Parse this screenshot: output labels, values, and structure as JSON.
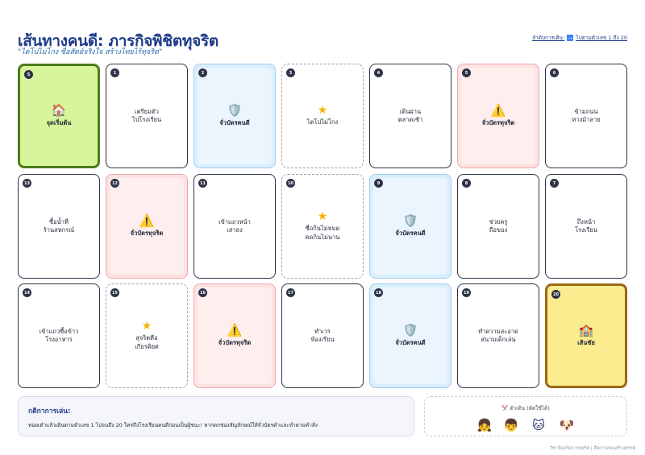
{
  "header": {
    "title": "เส้นทางคนดี: ภารกิจพิชิตทุจริต",
    "subtitle": "\"ไตโปไม่โกง ซื่อสัตย์จริงใจ สร้างไทยไร้ทุจริต\"",
    "order_label": "ลำดับการเดิน:",
    "order_arrow": "⇢",
    "order_text": "ไปตามตัวเลข 1 ถึง 20"
  },
  "cards": [
    {
      "num": "S",
      "type": "start",
      "icon": "🏠",
      "icon_name": "house-icon",
      "label": "จุดเริ่มต้น"
    },
    {
      "num": "1",
      "type": "plain",
      "icon": "",
      "icon_name": "",
      "label": "เตรียมตัว\nไปโรงเรียน"
    },
    {
      "num": "2",
      "type": "good",
      "icon": "🛡️",
      "icon_name": "shield-icon",
      "label": "จั่วบัตรคนดี"
    },
    {
      "num": "3",
      "type": "star",
      "icon": "★",
      "icon_name": "star-icon",
      "label": "ไตโปไม่โกง"
    },
    {
      "num": "4",
      "type": "plain",
      "icon": "",
      "icon_name": "",
      "label": "เดินผ่าน\nตลาดเช้า"
    },
    {
      "num": "5",
      "type": "bad",
      "icon": "⚠️",
      "icon_name": "warning-icon",
      "label": "จั่วบัตรทุจริต"
    },
    {
      "num": "6",
      "type": "plain",
      "icon": "",
      "icon_name": "",
      "label": "ข้ามถนน\nทางม้าลาย"
    },
    {
      "num": "13",
      "type": "plain",
      "icon": "",
      "icon_name": "",
      "label": "ซื้อน้ำที่\nร้านสหกรณ์"
    },
    {
      "num": "12",
      "type": "bad",
      "icon": "⚠️",
      "icon_name": "warning-icon",
      "label": "จั่วบัตรทุจริต"
    },
    {
      "num": "11",
      "type": "plain",
      "icon": "",
      "icon_name": "",
      "label": "เข้าแถวหน้า\nเสาธง"
    },
    {
      "num": "10",
      "type": "star",
      "icon": "★",
      "icon_name": "star-icon",
      "label": "ซื่อกินไม่หมด\nคดกินไม่นาน"
    },
    {
      "num": "9",
      "type": "good",
      "icon": "🛡️",
      "icon_name": "shield-icon",
      "label": "จั่วบัตรคนดี"
    },
    {
      "num": "8",
      "type": "plain",
      "icon": "",
      "icon_name": "",
      "label": "ช่วยครู\nถือของ"
    },
    {
      "num": "7",
      "type": "plain",
      "icon": "",
      "icon_name": "",
      "label": "ถึงหน้า\nโรงเรียน"
    },
    {
      "num": "14",
      "type": "plain",
      "icon": "",
      "icon_name": "",
      "label": "เข้าแถวซื้อข้าว\nโรงอาหาร"
    },
    {
      "num": "15",
      "type": "star",
      "icon": "★",
      "icon_name": "star-icon",
      "label": "สุจริตคือ\nเกียรติยศ"
    },
    {
      "num": "16",
      "type": "bad",
      "icon": "⚠️",
      "icon_name": "warning-icon",
      "label": "จั่วบัตรทุจริต"
    },
    {
      "num": "17",
      "type": "plain",
      "icon": "",
      "icon_name": "",
      "label": "ทำเวร\nห้องเรียน"
    },
    {
      "num": "18",
      "type": "good",
      "icon": "🛡️",
      "icon_name": "shield-icon",
      "label": "จั่วบัตรคนดี"
    },
    {
      "num": "19",
      "type": "plain",
      "icon": "",
      "icon_name": "",
      "label": "ทำความสะอาด\nสนามเด็กเล่น"
    },
    {
      "num": "20",
      "type": "goal",
      "icon": "🏫",
      "icon_name": "school-icon",
      "label": "เส้นชัย"
    }
  ],
  "rules": {
    "title": "กติกาการเล่น:",
    "text": "ทอยเต๋าแล้วเดินตามตัวเลข 1 ไปจนถึง 20 ใครถึงโรงเรียนคนดีก่อนเป็นผู้ชนะ! หากตกช่องสัญลักษณ์ให้จั่วบัตรคำและทำตามคำสั่ง"
  },
  "pieces": {
    "title": "✂️ ตัวเดิน (ตัดใช้ได้)",
    "items": [
      {
        "glyph": "👧",
        "name": "girl-piece-icon"
      },
      {
        "glyph": "👦",
        "name": "boy-piece-icon"
      },
      {
        "glyph": "🐱",
        "name": "cat-piece-icon"
      },
      {
        "glyph": "🐶",
        "name": "dog-piece-icon"
      }
    ]
  },
  "footer": "วิชาป้องกันการทุจริต | สื่อการสอนสร้างสรรค์"
}
